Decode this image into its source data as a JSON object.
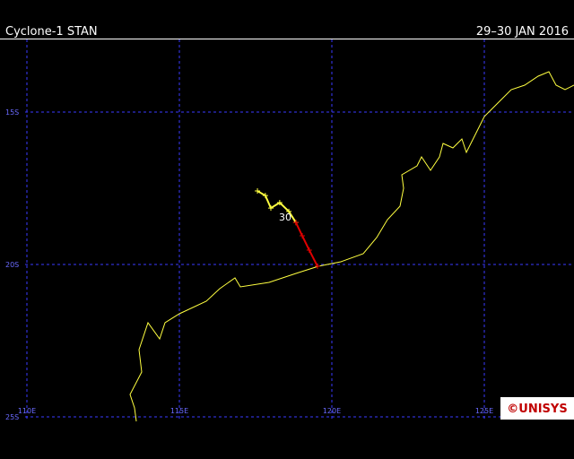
{
  "header": {
    "title": "Cyclone-1 STAN",
    "date": "29–30 JAN 2016"
  },
  "grid": {
    "lat": [
      {
        "value": -15,
        "label": "15S"
      },
      {
        "value": -20,
        "label": "20S"
      },
      {
        "value": -25,
        "label": "25S"
      }
    ],
    "lon": [
      {
        "value": 110,
        "label": "110E"
      },
      {
        "value": 115,
        "label": "115E"
      },
      {
        "value": 120,
        "label": "120E"
      },
      {
        "value": 125,
        "label": "125E"
      }
    ]
  },
  "track": [
    {
      "color": "#ffff40",
      "lon": [
        117.56,
        117.82,
        118.0,
        118.29,
        118.59,
        118.82
      ],
      "lat": [
        -17.59,
        -17.74,
        -18.15,
        -17.97,
        -18.26,
        -18.62
      ]
    },
    {
      "color": "#e00000",
      "lon": [
        118.82,
        119.03,
        119.26,
        119.53
      ],
      "lat": [
        -18.62,
        -19.06,
        -19.53,
        -20.06
      ]
    }
  ],
  "day_label": {
    "text": "30",
    "lon": 118.59,
    "lat": -18.26
  },
  "logo": "©UNISYS"
}
